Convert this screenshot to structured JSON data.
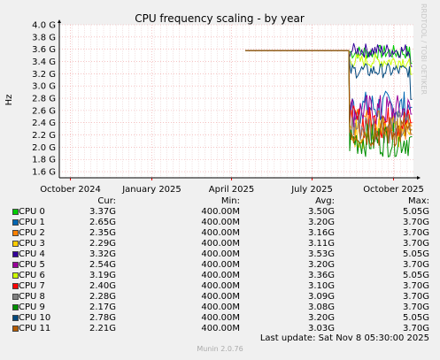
{
  "chart_data": {
    "type": "line",
    "title": "CPU frequency scaling - by year",
    "ylabel": "Hz",
    "ylim": [
      1.5,
      4.0
    ],
    "yticks": [
      "1.6 G",
      "1.8 G",
      "2.0 G",
      "2.2 G",
      "2.4 G",
      "2.6 G",
      "2.8 G",
      "3.0 G",
      "3.2 G",
      "3.4 G",
      "3.6 G",
      "3.8 G",
      "4.0 G"
    ],
    "xticks": [
      "October 2024",
      "January 2025",
      "April 2025",
      "July 2025",
      "October 2025"
    ],
    "grid": true,
    "legend_columns": {
      "cur": "Cur:",
      "min": "Min:",
      "avg": "Avg:",
      "max": "Max:"
    },
    "series": [
      {
        "name": "CPU 0",
        "color": "#00cc00",
        "cur": "3.37G",
        "min": "400.00M",
        "avg": "3.50G",
        "max": "5.05G"
      },
      {
        "name": "CPU 1",
        "color": "#0066b3",
        "cur": "2.65G",
        "min": "400.00M",
        "avg": "3.20G",
        "max": "3.70G"
      },
      {
        "name": "CPU 2",
        "color": "#ff8000",
        "cur": "2.35G",
        "min": "400.00M",
        "avg": "3.16G",
        "max": "3.70G"
      },
      {
        "name": "CPU 3",
        "color": "#ffcc00",
        "cur": "2.29G",
        "min": "400.00M",
        "avg": "3.11G",
        "max": "3.70G"
      },
      {
        "name": "CPU 4",
        "color": "#330099",
        "cur": "3.32G",
        "min": "400.00M",
        "avg": "3.53G",
        "max": "5.05G"
      },
      {
        "name": "CPU 5",
        "color": "#990099",
        "cur": "2.54G",
        "min": "400.00M",
        "avg": "3.20G",
        "max": "3.70G"
      },
      {
        "name": "CPU 6",
        "color": "#ccff00",
        "cur": "3.19G",
        "min": "400.00M",
        "avg": "3.36G",
        "max": "5.05G"
      },
      {
        "name": "CPU 7",
        "color": "#ff0000",
        "cur": "2.40G",
        "min": "400.00M",
        "avg": "3.10G",
        "max": "3.70G"
      },
      {
        "name": "CPU 8",
        "color": "#808080",
        "cur": "2.28G",
        "min": "400.00M",
        "avg": "3.09G",
        "max": "3.70G"
      },
      {
        "name": "CPU 9",
        "color": "#008f00",
        "cur": "2.17G",
        "min": "400.00M",
        "avg": "3.08G",
        "max": "3.70G"
      },
      {
        "name": "CPU 10",
        "color": "#00487d",
        "cur": "2.78G",
        "min": "400.00M",
        "avg": "3.20G",
        "max": "5.05G"
      },
      {
        "name": "CPU 11",
        "color": "#b35a00",
        "cur": "2.21G",
        "min": "400.00M",
        "avg": "3.03G",
        "max": "3.70G"
      }
    ]
  },
  "footer": {
    "last_update": "Last update: Sat Nov  8 05:30:00 2025",
    "munin_version": "Munin 2.0.76",
    "watermark": "RRDTOOL / TOBI OETIKER"
  }
}
